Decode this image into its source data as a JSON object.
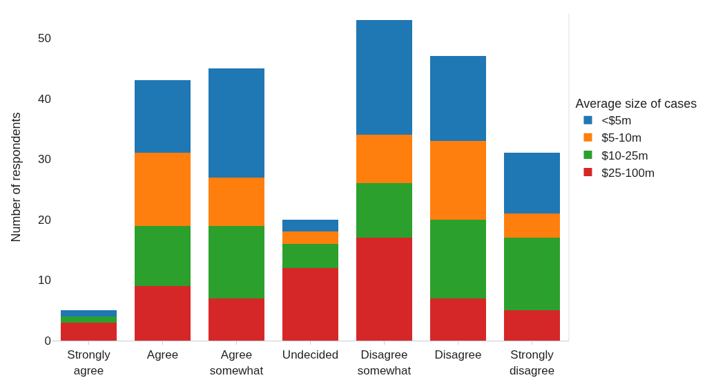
{
  "chart_data": {
    "type": "bar",
    "stacked": true,
    "ylabel": "Number of respondents",
    "legend_title": "Average size of cases",
    "legend": "right",
    "grid": false,
    "categories": [
      "Strongly agree",
      "Agree",
      "Agree somewhat",
      "Undecided",
      "Disagree somewhat",
      "Disagree",
      "Strongly disagree"
    ],
    "ylim": [
      0,
      54
    ],
    "yticks": [
      0,
      10,
      20,
      30,
      40,
      50
    ],
    "series": [
      {
        "name": "$25-100m",
        "color": "#d62728",
        "values": [
          3,
          9,
          7,
          12,
          17,
          7,
          5
        ]
      },
      {
        "name": "$10-25m",
        "color": "#2ca02c",
        "values": [
          1,
          10,
          12,
          4,
          9,
          13,
          12
        ]
      },
      {
        "name": "$5-10m",
        "color": "#ff7f0e",
        "values": [
          0,
          12,
          8,
          2,
          8,
          13,
          4
        ]
      },
      {
        "name": "<$5m",
        "color": "#1f77b4",
        "values": [
          1,
          12,
          18,
          2,
          19,
          14,
          10
        ]
      }
    ]
  }
}
